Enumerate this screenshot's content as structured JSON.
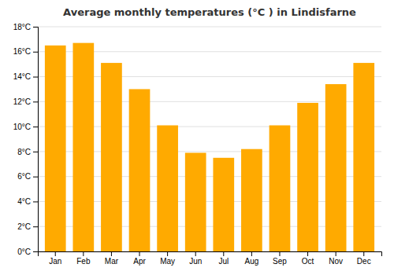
{
  "chart_data": {
    "type": "bar",
    "title": "Average monthly temperatures (°C ) in Lindisfarne",
    "categories": [
      "Jan",
      "Feb",
      "Mar",
      "Apr",
      "May",
      "Jun",
      "Jul",
      "Aug",
      "Sep",
      "Oct",
      "Nov",
      "Dec"
    ],
    "values": [
      16.5,
      16.7,
      15.1,
      13.0,
      10.1,
      7.9,
      7.5,
      8.2,
      10.1,
      11.9,
      13.4,
      15.1
    ],
    "color": "#FFAA00",
    "ylim": [
      0,
      18
    ],
    "yticks": [
      {
        "value": 0,
        "label": "0°C"
      },
      {
        "value": 2,
        "label": "2°C"
      },
      {
        "value": 4,
        "label": "4°C"
      },
      {
        "value": 6,
        "label": "6°C"
      },
      {
        "value": 8,
        "label": "8°C"
      },
      {
        "value": 10,
        "label": "10°C"
      },
      {
        "value": 12,
        "label": "12°C"
      },
      {
        "value": 14,
        "label": "14°C"
      },
      {
        "value": 16,
        "label": "16°C"
      },
      {
        "value": 18,
        "label": "18°C"
      }
    ],
    "grid": true
  }
}
